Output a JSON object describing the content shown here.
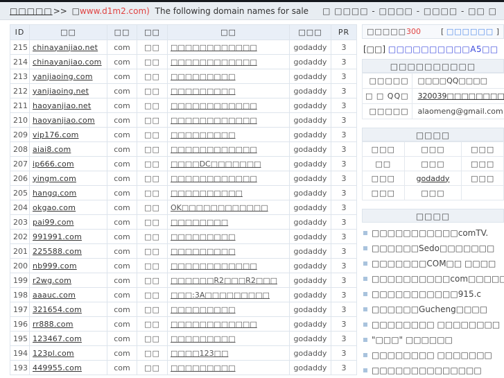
{
  "colors": {
    "red": "#e04342",
    "buy_blue": "#4a86e8",
    "notice_blue": "#3b49dd",
    "bullet_blue": "#a9c3dd"
  },
  "header": {
    "site_label": "□□□□□",
    "separator": ">>",
    "paren_box": "□",
    "url_text": "www.d1m2.com)",
    "subtitle": "The following domain names for sale",
    "nav_text": "□ □□□□ - □□□□ - □□□□ - □□ □"
  },
  "table": {
    "columns": [
      "ID",
      "□□",
      "□□",
      "□□",
      "□□",
      "□□□",
      "PR"
    ],
    "rows": [
      {
        "id": "215",
        "domain": "chinayanjiao.net",
        "suffix": "com",
        "type": "□□",
        "desc": "□□□□□□□□□□□□",
        "registrar": "godaddy",
        "pr": "3"
      },
      {
        "id": "214",
        "domain": "chinayanjiao.com",
        "suffix": "com",
        "type": "□□",
        "desc": "□□□□□□□□□□□□",
        "registrar": "godaddy",
        "pr": "3"
      },
      {
        "id": "213",
        "domain": "yanjiaoing.com",
        "suffix": "com",
        "type": "□□",
        "desc": "□□□□□□□□□",
        "registrar": "godaddy",
        "pr": "3"
      },
      {
        "id": "212",
        "domain": "yanjiaoing.net",
        "suffix": "com",
        "type": "□□",
        "desc": "□□□□□□□□□",
        "registrar": "godaddy",
        "pr": "3"
      },
      {
        "id": "211",
        "domain": "haoyanjiao.net",
        "suffix": "com",
        "type": "□□",
        "desc": "□□□□□□□□□□□□",
        "registrar": "godaddy",
        "pr": "3"
      },
      {
        "id": "210",
        "domain": "haoyanjiao.com",
        "suffix": "com",
        "type": "□□",
        "desc": "□□□□□□□□□□□□",
        "registrar": "godaddy",
        "pr": "3"
      },
      {
        "id": "209",
        "domain": "vip176.com",
        "suffix": "com",
        "type": "□□",
        "desc": "□□□□□□□□□",
        "registrar": "godaddy",
        "pr": "3"
      },
      {
        "id": "208",
        "domain": "aiai8.com",
        "suffix": "com",
        "type": "□□",
        "desc": "□□□□□□□□□□□□",
        "registrar": "godaddy",
        "pr": "3"
      },
      {
        "id": "207",
        "domain": "ip666.com",
        "suffix": "com",
        "type": "□□",
        "desc": "□□□□DC□□□□□□□",
        "registrar": "godaddy",
        "pr": "3"
      },
      {
        "id": "206",
        "domain": "yingm.com",
        "suffix": "com",
        "type": "□□",
        "desc": "□□□□□□□□□□□□",
        "registrar": "godaddy",
        "pr": "3"
      },
      {
        "id": "205",
        "domain": "hangq.com",
        "suffix": "com",
        "type": "□□",
        "desc": "□□□□□□□□□□",
        "registrar": "godaddy",
        "pr": "3"
      },
      {
        "id": "204",
        "domain": "okgao.com",
        "suffix": "com",
        "type": "□□",
        "desc": "OK□□□□□□□□□□□□",
        "registrar": "godaddy",
        "pr": "3"
      },
      {
        "id": "203",
        "domain": "pai99.com",
        "suffix": "com",
        "type": "□□",
        "desc": "□□□□□□□□",
        "registrar": "godaddy",
        "pr": "3"
      },
      {
        "id": "202",
        "domain": "991991.com",
        "suffix": "com",
        "type": "□□",
        "desc": "□□□□□□□□□",
        "registrar": "godaddy",
        "pr": "3"
      },
      {
        "id": "201",
        "domain": "225588.com",
        "suffix": "com",
        "type": "□□",
        "desc": "□□□□□□□□□",
        "registrar": "godaddy",
        "pr": "3"
      },
      {
        "id": "200",
        "domain": "nb999.com",
        "suffix": "com",
        "type": "□□",
        "desc": "□□□□□□□□□□□□",
        "registrar": "godaddy",
        "pr": "3"
      },
      {
        "id": "199",
        "domain": "r2wg.com",
        "suffix": "com",
        "type": "□□",
        "desc": "□□□□□□R2□□□R2□□□",
        "registrar": "godaddy",
        "pr": "3"
      },
      {
        "id": "198",
        "domain": "aaauc.com",
        "suffix": "com",
        "type": "□□",
        "desc": "□□□:3A□□□□□□□□□",
        "registrar": "godaddy",
        "pr": "3"
      },
      {
        "id": "197",
        "domain": "321654.com",
        "suffix": "com",
        "type": "□□",
        "desc": "□□□□□□□□□",
        "registrar": "godaddy",
        "pr": "3"
      },
      {
        "id": "196",
        "domain": "rr888.com",
        "suffix": "com",
        "type": "□□",
        "desc": "□□□□□□□□□□□□",
        "registrar": "godaddy",
        "pr": "3"
      },
      {
        "id": "195",
        "domain": "123467.com",
        "suffix": "com",
        "type": "□□",
        "desc": "□□□□□□□□□",
        "registrar": "godaddy",
        "pr": "3"
      },
      {
        "id": "194",
        "domain": "123pl.com",
        "suffix": "com",
        "type": "□□",
        "desc": "□□□□123□□",
        "registrar": "godaddy",
        "pr": "3"
      },
      {
        "id": "193",
        "domain": "449955.com",
        "suffix": "com",
        "type": "□□",
        "desc": "□□□□□□□□□",
        "registrar": "godaddy",
        "pr": "3"
      }
    ]
  },
  "sidebar": {
    "promo": {
      "left_text": "□□□□□",
      "count": "300",
      "bracket_open": "[ ",
      "buy_label": "□□□□□□",
      "bracket_close": " ]"
    },
    "notice": {
      "prefix": "[□□] ",
      "link_text": "□□□□□□□□□□A5□□"
    },
    "contact": {
      "title": "□□□□□□□□□□",
      "rows": [
        {
          "label": "□□□□□",
          "value": "□□□□QQ□□□□",
          "is_link": false
        },
        {
          "label": "□ □ QQ□",
          "value": "320039□□□□□□□□□",
          "is_link": true
        },
        {
          "label": "□□□□□",
          "value": "alaomeng@gmail.com",
          "is_link": false
        }
      ]
    },
    "links": {
      "title": "□□□□",
      "rows": [
        [
          "□□□",
          "□□□",
          "□□□"
        ],
        [
          "□□",
          "□□□",
          "□□□"
        ],
        [
          "□□□",
          "godaddy",
          "□□□"
        ],
        [
          "□□□",
          "□□□",
          ""
        ]
      ],
      "underlined_cell": "godaddy"
    },
    "news": {
      "title": "□□□□",
      "items": [
        "□□□□□□□□□□□comTV.",
        "□□□□□□Sedo□□□□□□□",
        "□□□□□□□COM□□ □□□□",
        "□□□□□□□□□□com□□□□□",
        "□□□□□□□□□□□915.c",
        "□□□□□□Gucheng□□□□",
        "□□□□□□□□ □□□□□□□□",
        "\"□□□\" □□□□□□",
        "□□□□□□□□ □□□□□□□",
        "□□□□□□□□□□□□□□"
      ]
    }
  }
}
